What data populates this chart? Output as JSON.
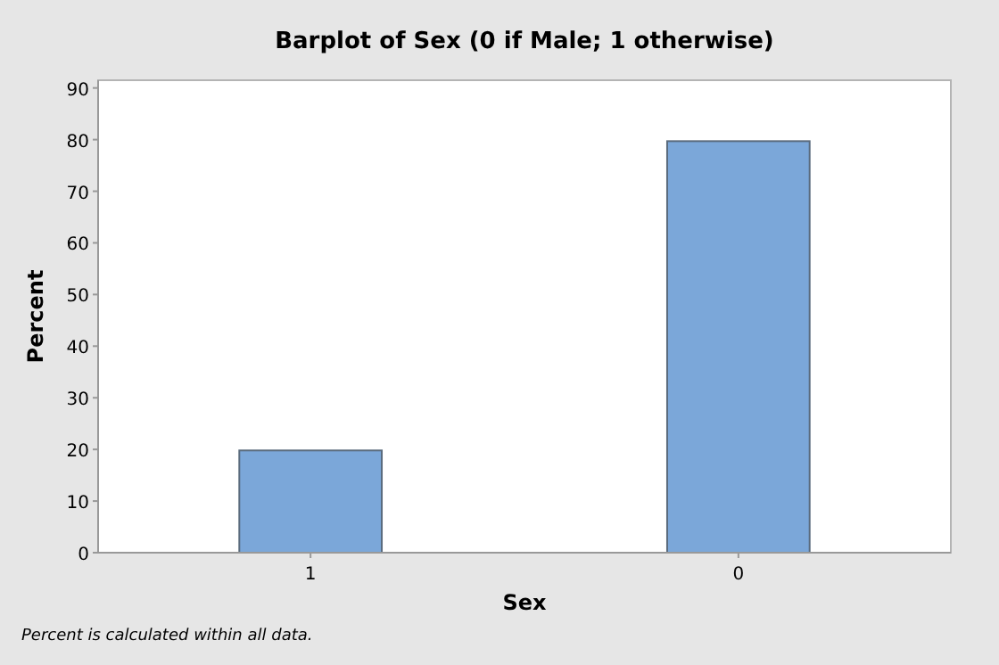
{
  "chart_data": {
    "type": "bar",
    "title": "Barplot of Sex (0 if Male; 1 otherwise)",
    "xlabel": "Sex",
    "ylabel": "Percent",
    "categories": [
      "1",
      "0"
    ],
    "values": [
      19.8,
      79.7
    ],
    "color": "#7ba7d9",
    "ylim": [
      0,
      91.5
    ],
    "yticks": [
      0,
      10,
      20,
      30,
      40,
      50,
      60,
      70,
      80,
      90
    ],
    "grid": false,
    "annotations": [
      "Percent is calculated within all data."
    ]
  }
}
